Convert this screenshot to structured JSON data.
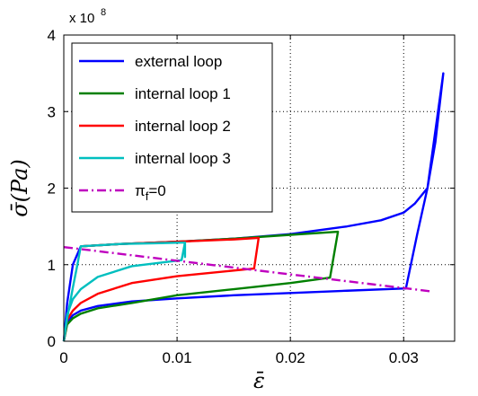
{
  "chart_data": {
    "type": "line",
    "xlabel": "ε̄",
    "ylabel": "σ̄(Pa)",
    "y_multiplier_label": "x 10",
    "y_multiplier_exponent": "8",
    "xlim": [
      0,
      0.0345
    ],
    "ylim": [
      0,
      4
    ],
    "x_ticks": [
      0,
      0.01,
      0.02,
      0.03
    ],
    "x_tick_labels": [
      "0",
      "0.01",
      "0.02",
      "0.03"
    ],
    "y_ticks": [
      0,
      1,
      2,
      3,
      4
    ],
    "y_tick_labels": [
      "0",
      "1",
      "2",
      "3",
      "4"
    ],
    "grid": true,
    "legend_position": "top-left",
    "series": [
      {
        "name": "external loop",
        "color": "#0000ff",
        "dash": "solid",
        "points": [
          [
            0,
            0
          ],
          [
            0.0003,
            0.25
          ],
          [
            0.0008,
            0.34
          ],
          [
            0.0015,
            0.4
          ],
          [
            0.003,
            0.46
          ],
          [
            0.006,
            0.52
          ],
          [
            0.01,
            0.56
          ],
          [
            0.015,
            0.6
          ],
          [
            0.02,
            0.63
          ],
          [
            0.025,
            0.66
          ],
          [
            0.0302,
            0.69
          ],
          [
            0.0302,
            0.69
          ],
          [
            0.0312,
            1.4
          ],
          [
            0.0321,
            2.0
          ],
          [
            0.0335,
            3.5
          ],
          [
            0.0335,
            3.5
          ],
          [
            0.0328,
            2.6
          ],
          [
            0.0321,
            2.0
          ],
          [
            0.031,
            1.8
          ],
          [
            0.03,
            1.68
          ],
          [
            0.028,
            1.58
          ],
          [
            0.025,
            1.5
          ],
          [
            0.02,
            1.4
          ],
          [
            0.015,
            1.34
          ],
          [
            0.01,
            1.3
          ],
          [
            0.005,
            1.27
          ],
          [
            0.0015,
            1.24
          ],
          [
            0.0008,
            1.0
          ],
          [
            0.0003,
            0.5
          ],
          [
            0,
            0
          ]
        ]
      },
      {
        "name": "internal loop 1",
        "color": "#008000",
        "dash": "solid",
        "points": [
          [
            0,
            0
          ],
          [
            0.0003,
            0.22
          ],
          [
            0.0008,
            0.3
          ],
          [
            0.0015,
            0.36
          ],
          [
            0.003,
            0.43
          ],
          [
            0.006,
            0.5
          ],
          [
            0.01,
            0.6
          ],
          [
            0.015,
            0.68
          ],
          [
            0.02,
            0.76
          ],
          [
            0.0235,
            0.83
          ],
          [
            0.0235,
            0.83
          ],
          [
            0.0242,
            1.43
          ],
          [
            0.0242,
            1.43
          ],
          [
            0.02,
            1.39
          ],
          [
            0.015,
            1.34
          ],
          [
            0.01,
            1.3
          ],
          [
            0.005,
            1.27
          ],
          [
            0.0015,
            1.24
          ]
        ]
      },
      {
        "name": "internal loop 2",
        "color": "#ff0000",
        "dash": "solid",
        "points": [
          [
            0,
            0
          ],
          [
            0.0003,
            0.28
          ],
          [
            0.0008,
            0.4
          ],
          [
            0.0015,
            0.5
          ],
          [
            0.003,
            0.62
          ],
          [
            0.006,
            0.76
          ],
          [
            0.01,
            0.85
          ],
          [
            0.0168,
            0.95
          ],
          [
            0.0168,
            0.95
          ],
          [
            0.0172,
            1.35
          ],
          [
            0.0172,
            1.35
          ],
          [
            0.015,
            1.33
          ],
          [
            0.01,
            1.3
          ],
          [
            0.005,
            1.27
          ],
          [
            0.0015,
            1.24
          ]
        ]
      },
      {
        "name": "internal loop 3",
        "color": "#00bfbf",
        "dash": "solid",
        "points": [
          [
            0,
            0
          ],
          [
            0.0003,
            0.35
          ],
          [
            0.0008,
            0.55
          ],
          [
            0.0015,
            0.68
          ],
          [
            0.003,
            0.84
          ],
          [
            0.006,
            0.98
          ],
          [
            0.0104,
            1.06
          ],
          [
            0.0104,
            1.06
          ],
          [
            0.0107,
            1.29
          ],
          [
            0.0107,
            1.29
          ],
          [
            0.0107,
            1.1
          ],
          [
            0.0107,
            1.29
          ],
          [
            0.008,
            1.28
          ],
          [
            0.005,
            1.27
          ],
          [
            0.0015,
            1.24
          ],
          [
            0.0012,
            1.0
          ],
          [
            0.0008,
            0.7
          ],
          [
            0.0003,
            0.3
          ],
          [
            0,
            0
          ]
        ]
      },
      {
        "name": "πf=0",
        "name_main": "π",
        "name_sub": "f",
        "name_rest": "=0",
        "color": "#bf00bf",
        "dash": "dashdot",
        "points": [
          [
            0,
            1.23
          ],
          [
            0.0325,
            0.65
          ]
        ]
      }
    ]
  }
}
